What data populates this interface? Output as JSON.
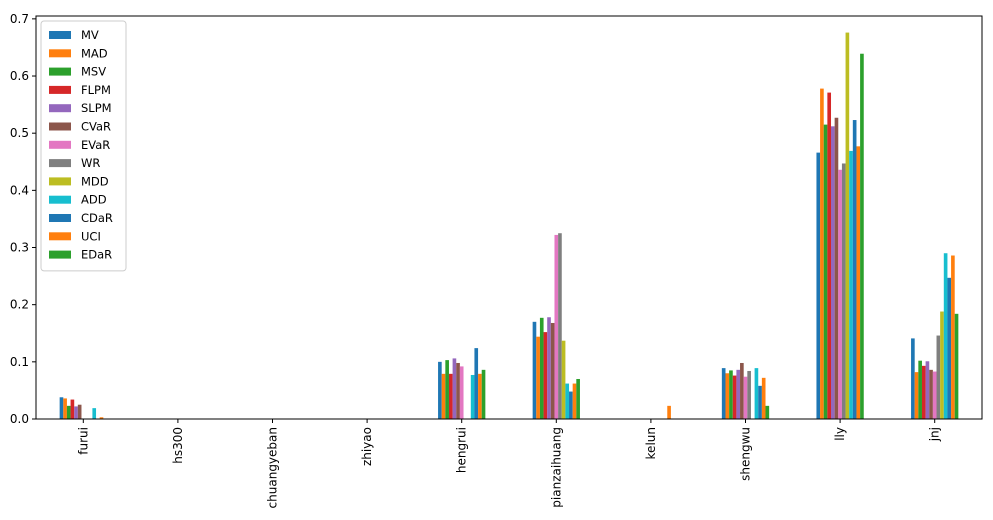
{
  "chart_data": {
    "type": "bar",
    "categories": [
      "furui",
      "hs300",
      "chuangyeban",
      "zhiyao",
      "hengrui",
      "pianzaihuang",
      "kelun",
      "shengwu",
      "lly",
      "jnj"
    ],
    "ylim": [
      0,
      0.705
    ],
    "yticks": [
      "0.0",
      "0.1",
      "0.2",
      "0.3",
      "0.4",
      "0.5",
      "0.6",
      "0.7"
    ],
    "ytick_values": [
      0,
      0.1,
      0.2,
      0.3,
      0.4,
      0.5,
      0.6,
      0.7
    ],
    "legend_position": "upper-left",
    "grid": false,
    "series": [
      {
        "name": "MV",
        "color": "#1f77b4",
        "values": [
          0.038,
          0,
          0,
          0,
          0.1,
          0.17,
          0,
          0.089,
          0.466,
          0.141
        ]
      },
      {
        "name": "MAD",
        "color": "#ff7f0e",
        "values": [
          0.036,
          0,
          0,
          0,
          0.079,
          0.144,
          0,
          0.08,
          0.578,
          0.082
        ]
      },
      {
        "name": "MSV",
        "color": "#2ca02c",
        "values": [
          0.023,
          0,
          0,
          0,
          0.103,
          0.177,
          0,
          0.085,
          0.515,
          0.102
        ]
      },
      {
        "name": "FLPM",
        "color": "#d62728",
        "values": [
          0.034,
          0,
          0,
          0,
          0.079,
          0.152,
          0,
          0.076,
          0.571,
          0.093
        ]
      },
      {
        "name": "SLPM",
        "color": "#9467bd",
        "values": [
          0.022,
          0,
          0,
          0,
          0.106,
          0.178,
          0,
          0.086,
          0.512,
          0.101
        ]
      },
      {
        "name": "CVaR",
        "color": "#8c564b",
        "values": [
          0.025,
          0,
          0,
          0,
          0.098,
          0.168,
          0,
          0.098,
          0.527,
          0.086
        ]
      },
      {
        "name": "EVaR",
        "color": "#e377c2",
        "values": [
          0.0,
          0,
          0,
          0,
          0.092,
          0.322,
          0,
          0.074,
          0.436,
          0.083
        ]
      },
      {
        "name": "WR",
        "color": "#7f7f7f",
        "values": [
          0.0,
          0,
          0,
          0,
          0.0,
          0.325,
          0,
          0.084,
          0.447,
          0.146
        ]
      },
      {
        "name": "MDD",
        "color": "#bcbd22",
        "values": [
          0.0,
          0,
          0,
          0,
          0.0,
          0.137,
          0,
          0.0,
          0.676,
          0.188
        ]
      },
      {
        "name": "ADD",
        "color": "#17becf",
        "values": [
          0.019,
          0,
          0,
          0,
          0.077,
          0.062,
          0,
          0.089,
          0.469,
          0.29
        ]
      },
      {
        "name": "CDaR",
        "color": "#1f77b4",
        "values": [
          0.0,
          0,
          0,
          0,
          0.124,
          0.048,
          0,
          0.058,
          0.523,
          0.247
        ]
      },
      {
        "name": "UCI",
        "color": "#ff7f0e",
        "values": [
          0.003,
          0,
          0,
          0,
          0.079,
          0.062,
          0.023,
          0.072,
          0.477,
          0.286
        ]
      },
      {
        "name": "EDaR",
        "color": "#2ca02c",
        "values": [
          0.0,
          0,
          0,
          0,
          0.086,
          0.07,
          0.0,
          0.023,
          0.639,
          0.184
        ]
      }
    ]
  }
}
